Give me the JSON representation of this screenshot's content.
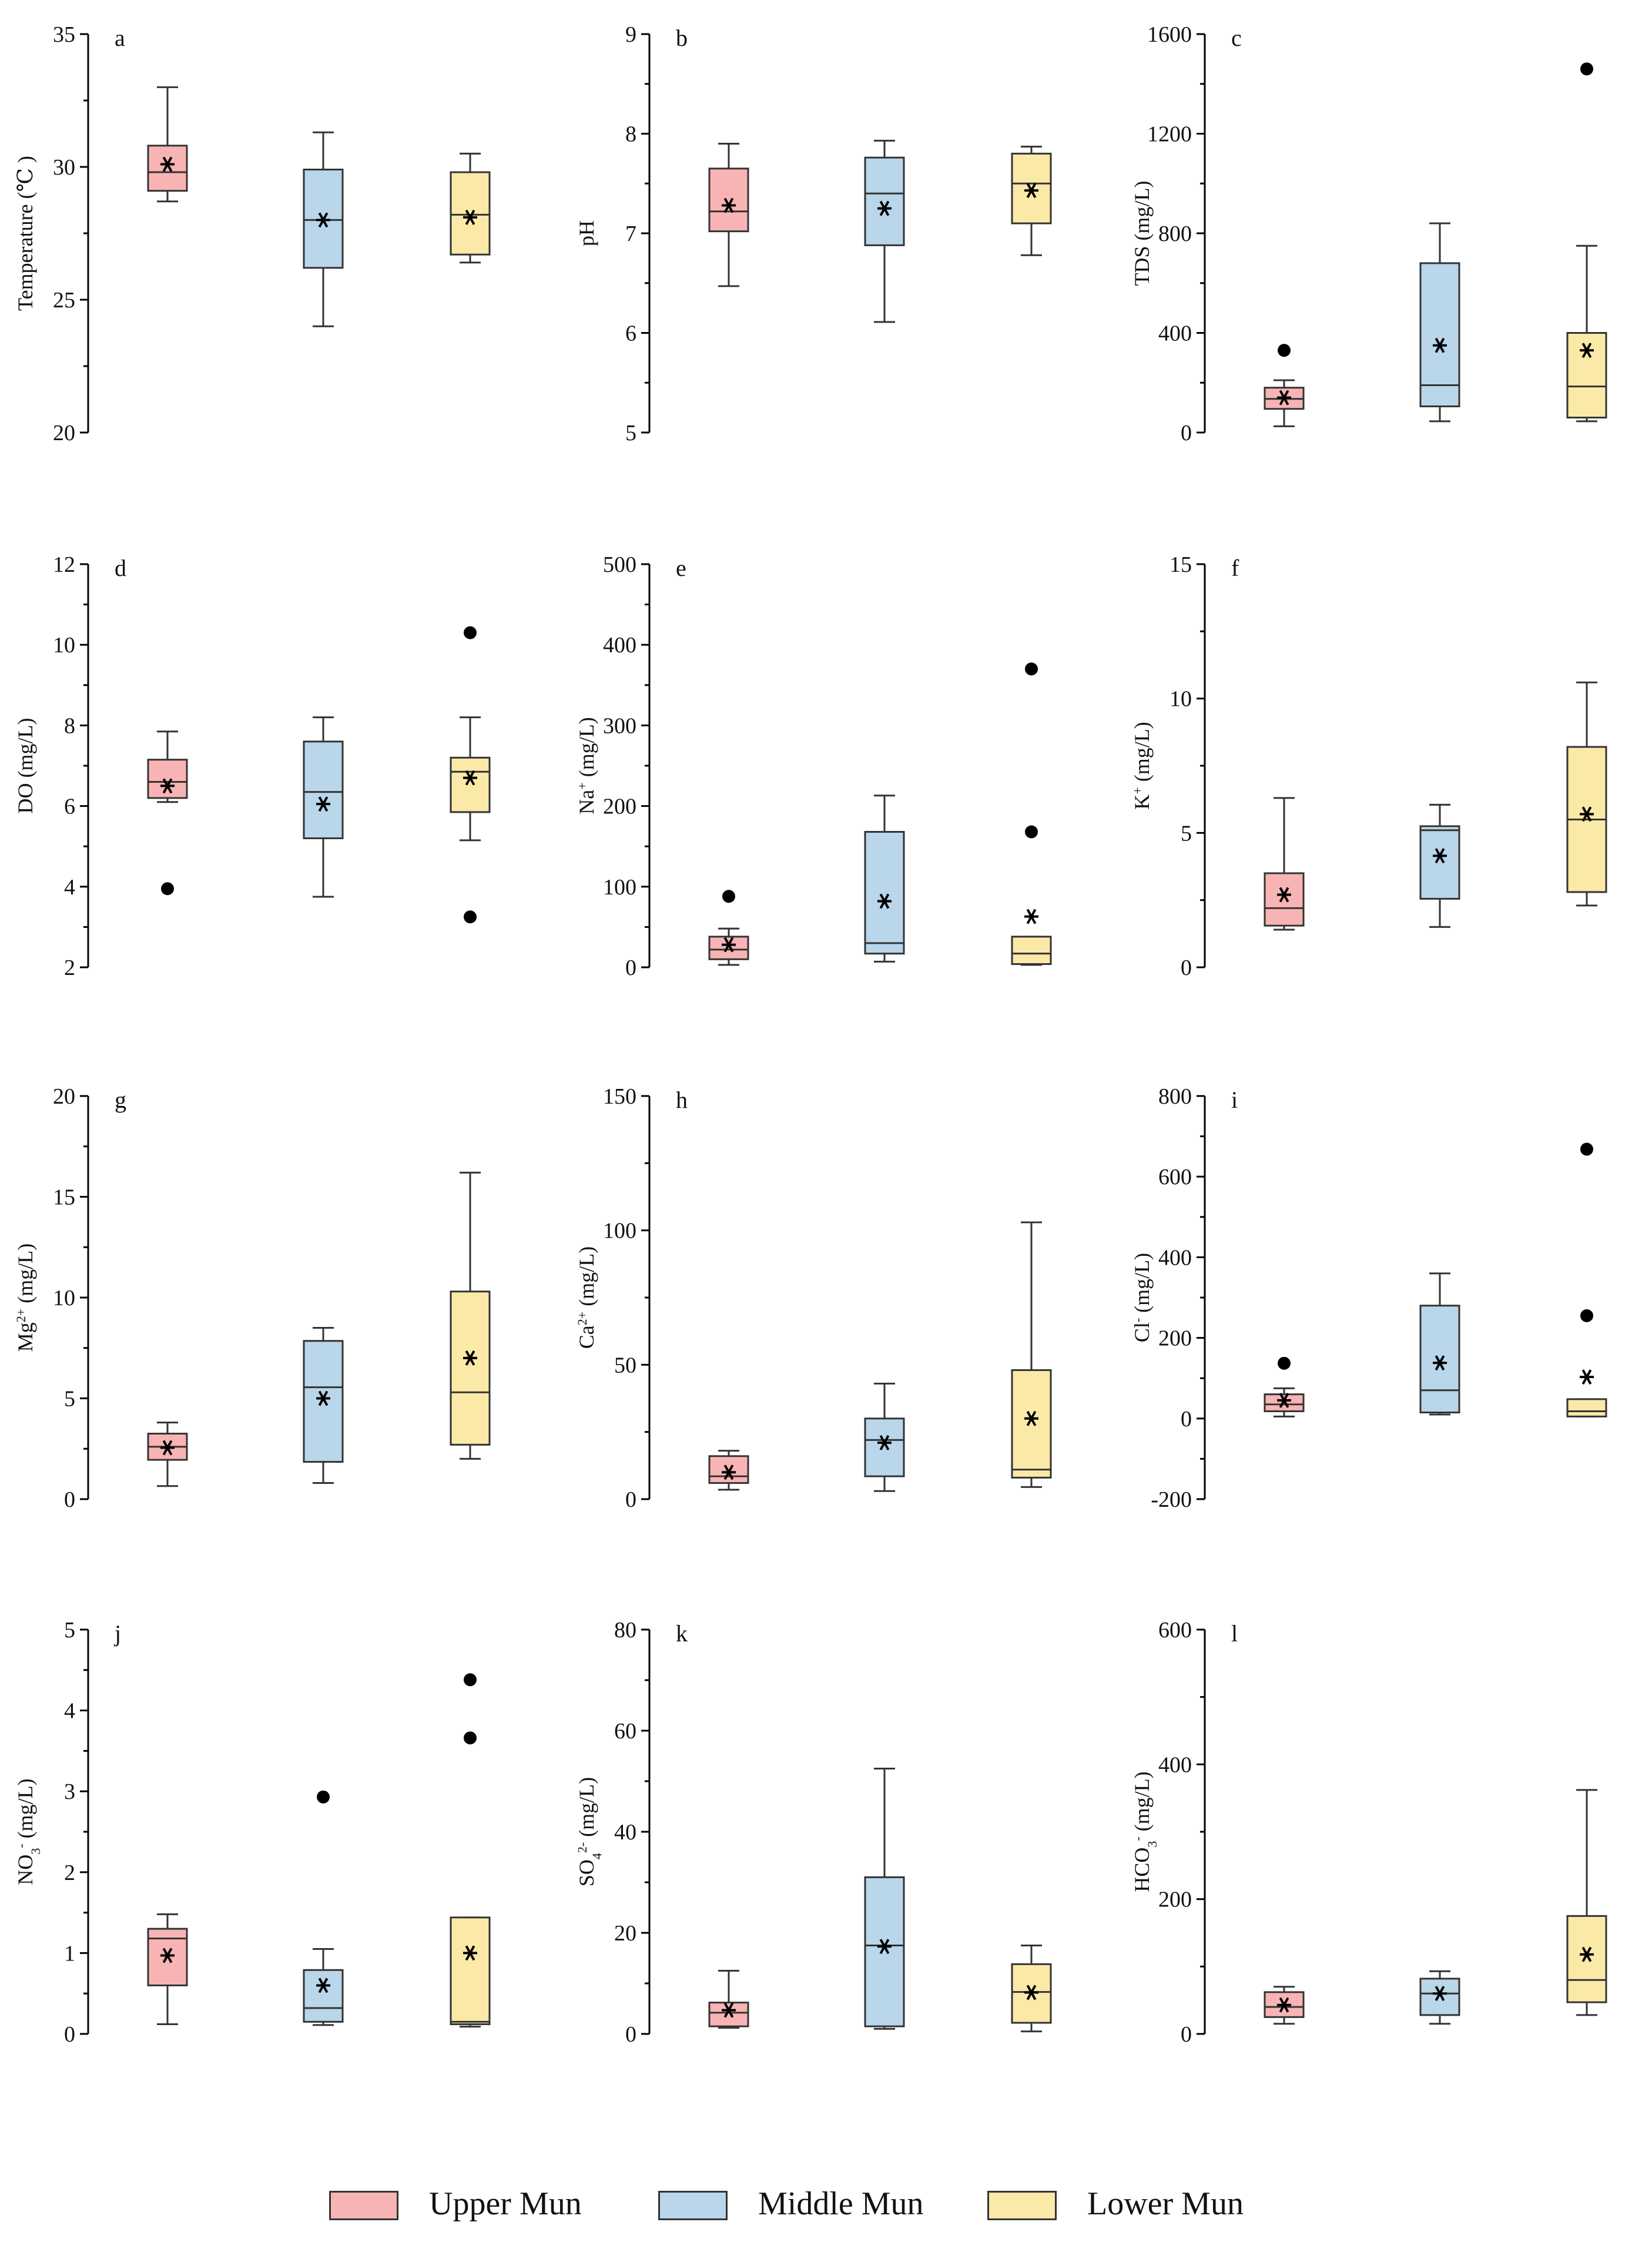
{
  "colors": {
    "Upper Mun": "#f8b4b4",
    "Middle Mun": "#b9d6ea",
    "Lower Mun": "#fbe9a8"
  },
  "legend": {
    "items": [
      {
        "label": "Upper Mun",
        "color": "#f8b4b4"
      },
      {
        "label": "Middle Mun",
        "color": "#b9d6ea"
      },
      {
        "label": "Lower Mun",
        "color": "#fbe9a8"
      }
    ]
  },
  "chart_data": [
    {
      "type": "box",
      "panel": "a",
      "ylabel": "Temperature (℃ )",
      "ylim": [
        20,
        35
      ],
      "ticks": [
        20,
        25,
        30,
        35
      ],
      "series": [
        {
          "name": "Upper Mun",
          "whisker_low": 28.7,
          "q1": 29.1,
          "median": 29.8,
          "q3": 30.8,
          "whisker_high": 33.0,
          "mean": 30.1,
          "outliers": []
        },
        {
          "name": "Middle Mun",
          "whisker_low": 24.0,
          "q1": 26.2,
          "median": 28.0,
          "q3": 29.9,
          "whisker_high": 31.3,
          "mean": 28.0,
          "outliers": []
        },
        {
          "name": "Lower Mun",
          "whisker_low": 26.4,
          "q1": 26.7,
          "median": 28.2,
          "q3": 29.8,
          "whisker_high": 30.5,
          "mean": 28.1,
          "outliers": []
        }
      ]
    },
    {
      "type": "box",
      "panel": "b",
      "ylabel": "pH",
      "ylim": [
        5,
        9
      ],
      "ticks": [
        5,
        6,
        7,
        8,
        9
      ],
      "series": [
        {
          "name": "Upper Mun",
          "whisker_low": 6.47,
          "q1": 7.02,
          "median": 7.22,
          "q3": 7.65,
          "whisker_high": 7.9,
          "mean": 7.28,
          "outliers": []
        },
        {
          "name": "Middle Mun",
          "whisker_low": 6.11,
          "q1": 6.88,
          "median": 7.4,
          "q3": 7.76,
          "whisker_high": 7.93,
          "mean": 7.25,
          "outliers": []
        },
        {
          "name": "Lower Mun",
          "whisker_low": 6.78,
          "q1": 7.1,
          "median": 7.5,
          "q3": 7.8,
          "whisker_high": 7.87,
          "mean": 7.43,
          "outliers": []
        }
      ]
    },
    {
      "type": "box",
      "panel": "c",
      "ylabel": "TDS (mg/L)",
      "ylim": [
        0,
        1600
      ],
      "ticks": [
        0,
        400,
        800,
        1200,
        1600
      ],
      "series": [
        {
          "name": "Upper Mun",
          "whisker_low": 25,
          "q1": 95,
          "median": 135,
          "q3": 180,
          "whisker_high": 210,
          "mean": 140,
          "outliers": [
            330
          ]
        },
        {
          "name": "Middle Mun",
          "whisker_low": 45,
          "q1": 105,
          "median": 190,
          "q3": 680,
          "whisker_high": 840,
          "mean": 350,
          "outliers": []
        },
        {
          "name": "Lower Mun",
          "whisker_low": 45,
          "q1": 60,
          "median": 185,
          "q3": 400,
          "whisker_high": 750,
          "mean": 330,
          "outliers": [
            1460
          ]
        }
      ]
    },
    {
      "type": "box",
      "panel": "d",
      "ylabel": "DO (mg/L)",
      "ylim": [
        2,
        12
      ],
      "ticks": [
        2,
        4,
        6,
        8,
        10,
        12
      ],
      "series": [
        {
          "name": "Upper Mun",
          "whisker_low": 6.1,
          "q1": 6.2,
          "median": 6.6,
          "q3": 7.15,
          "whisker_high": 7.85,
          "mean": 6.5,
          "outliers": [
            3.95
          ]
        },
        {
          "name": "Middle Mun",
          "whisker_low": 3.75,
          "q1": 5.2,
          "median": 6.35,
          "q3": 7.6,
          "whisker_high": 8.2,
          "mean": 6.05,
          "outliers": []
        },
        {
          "name": "Lower Mun",
          "whisker_low": 5.15,
          "q1": 5.85,
          "median": 6.85,
          "q3": 7.2,
          "whisker_high": 8.2,
          "mean": 6.7,
          "outliers": [
            10.3,
            3.25
          ]
        }
      ]
    },
    {
      "type": "box",
      "panel": "e",
      "ylabel": "Na+ (mg/L)",
      "ylim": [
        0,
        500
      ],
      "ticks": [
        0,
        100,
        200,
        300,
        400,
        500
      ],
      "series": [
        {
          "name": "Upper Mun",
          "whisker_low": 3,
          "q1": 10,
          "median": 22,
          "q3": 38,
          "whisker_high": 48,
          "mean": 28,
          "outliers": [
            88
          ]
        },
        {
          "name": "Middle Mun",
          "whisker_low": 7,
          "q1": 17,
          "median": 30,
          "q3": 168,
          "whisker_high": 213,
          "mean": 82,
          "outliers": []
        },
        {
          "name": "Lower Mun",
          "whisker_low": 3,
          "q1": 4,
          "median": 17,
          "q3": 38,
          "whisker_high": 38,
          "mean": 63,
          "outliers": [
            370,
            168
          ]
        }
      ]
    },
    {
      "type": "box",
      "panel": "f",
      "ylabel": "K+ (mg/L)",
      "ylim": [
        0,
        15
      ],
      "ticks": [
        0,
        5,
        10,
        15
      ],
      "series": [
        {
          "name": "Upper Mun",
          "whisker_low": 1.4,
          "q1": 1.55,
          "median": 2.2,
          "q3": 3.5,
          "whisker_high": 6.3,
          "mean": 2.7,
          "outliers": []
        },
        {
          "name": "Middle Mun",
          "whisker_low": 1.5,
          "q1": 2.55,
          "median": 5.1,
          "q3": 5.25,
          "whisker_high": 6.05,
          "mean": 4.15,
          "outliers": []
        },
        {
          "name": "Lower Mun",
          "whisker_low": 2.3,
          "q1": 2.8,
          "median": 5.5,
          "q3": 8.2,
          "whisker_high": 10.6,
          "mean": 5.7,
          "outliers": []
        }
      ]
    },
    {
      "type": "box",
      "panel": "g",
      "ylabel": "Mg2+ (mg/L)",
      "ylim": [
        0,
        20
      ],
      "ticks": [
        0,
        5,
        10,
        15,
        20
      ],
      "series": [
        {
          "name": "Upper Mun",
          "whisker_low": 0.65,
          "q1": 1.95,
          "median": 2.6,
          "q3": 3.25,
          "whisker_high": 3.8,
          "mean": 2.55,
          "outliers": []
        },
        {
          "name": "Middle Mun",
          "whisker_low": 0.8,
          "q1": 1.85,
          "median": 5.55,
          "q3": 7.85,
          "whisker_high": 8.5,
          "mean": 5.0,
          "outliers": []
        },
        {
          "name": "Lower Mun",
          "whisker_low": 2.0,
          "q1": 2.7,
          "median": 5.3,
          "q3": 10.3,
          "whisker_high": 16.2,
          "mean": 7.0,
          "outliers": []
        }
      ]
    },
    {
      "type": "box",
      "panel": "h",
      "ylabel": "Ca2+ (mg/L)",
      "ylim": [
        0,
        150
      ],
      "ticks": [
        0,
        50,
        100,
        150
      ],
      "series": [
        {
          "name": "Upper Mun",
          "whisker_low": 3.5,
          "q1": 6,
          "median": 8.5,
          "q3": 16,
          "whisker_high": 18,
          "mean": 10,
          "outliers": []
        },
        {
          "name": "Middle Mun",
          "whisker_low": 3,
          "q1": 8.5,
          "median": 22,
          "q3": 30,
          "whisker_high": 43,
          "mean": 21,
          "outliers": []
        },
        {
          "name": "Lower Mun",
          "whisker_low": 4.5,
          "q1": 8,
          "median": 11,
          "q3": 48,
          "whisker_high": 103,
          "mean": 30,
          "outliers": []
        }
      ]
    },
    {
      "type": "box",
      "panel": "i",
      "ylabel": "Cl- (mg/L)",
      "ylim": [
        -200,
        800
      ],
      "ticks": [
        -200,
        0,
        200,
        400,
        600,
        800
      ],
      "series": [
        {
          "name": "Upper Mun",
          "whisker_low": 5,
          "q1": 18,
          "median": 35,
          "q3": 60,
          "whisker_high": 75,
          "mean": 45,
          "outliers": [
            137
          ]
        },
        {
          "name": "Middle Mun",
          "whisker_low": 10,
          "q1": 15,
          "median": 70,
          "q3": 280,
          "whisker_high": 360,
          "mean": 138,
          "outliers": []
        },
        {
          "name": "Lower Mun",
          "whisker_low": 5,
          "q1": 5,
          "median": 18,
          "q3": 48,
          "whisker_high": 48,
          "mean": 103,
          "outliers": [
            668,
            255
          ]
        }
      ]
    },
    {
      "type": "box",
      "panel": "j",
      "ylabel": "NO3- (mg/L)",
      "ylim": [
        0,
        5
      ],
      "ticks": [
        0,
        1,
        2,
        3,
        4,
        5
      ],
      "series": [
        {
          "name": "Upper Mun",
          "whisker_low": 0.12,
          "q1": 0.6,
          "median": 1.18,
          "q3": 1.3,
          "whisker_high": 1.48,
          "mean": 0.97,
          "outliers": []
        },
        {
          "name": "Middle Mun",
          "whisker_low": 0.11,
          "q1": 0.15,
          "median": 0.32,
          "q3": 0.79,
          "whisker_high": 1.05,
          "mean": 0.6,
          "outliers": [
            2.93
          ]
        },
        {
          "name": "Lower Mun",
          "whisker_low": 0.09,
          "q1": 0.12,
          "median": 0.15,
          "q3": 1.44,
          "whisker_high": 1.44,
          "mean": 1.0,
          "outliers": [
            4.38,
            3.66
          ]
        }
      ]
    },
    {
      "type": "box",
      "panel": "k",
      "ylabel": "SO42- (mg/L)",
      "ylim": [
        0,
        80
      ],
      "ticks": [
        0,
        20,
        40,
        60,
        80
      ],
      "series": [
        {
          "name": "Upper Mun",
          "whisker_low": 1.2,
          "q1": 1.5,
          "median": 4.2,
          "q3": 6.2,
          "whisker_high": 12.5,
          "mean": 4.7,
          "outliers": []
        },
        {
          "name": "Middle Mun",
          "whisker_low": 1.0,
          "q1": 1.5,
          "median": 17.5,
          "q3": 31,
          "whisker_high": 52.5,
          "mean": 17.3,
          "outliers": []
        },
        {
          "name": "Lower Mun",
          "whisker_low": 0.5,
          "q1": 2.2,
          "median": 8.3,
          "q3": 13.8,
          "whisker_high": 17.5,
          "mean": 8.2,
          "outliers": []
        }
      ]
    },
    {
      "type": "box",
      "panel": "l",
      "ylabel": "HCO3- (mg/L)",
      "ylim": [
        0,
        600
      ],
      "ticks": [
        0,
        200,
        400,
        600
      ],
      "series": [
        {
          "name": "Upper Mun",
          "whisker_low": 15,
          "q1": 25,
          "median": 40,
          "q3": 62,
          "whisker_high": 70,
          "mean": 43,
          "outliers": []
        },
        {
          "name": "Middle Mun",
          "whisker_low": 15,
          "q1": 28,
          "median": 60,
          "q3": 82,
          "whisker_high": 93,
          "mean": 60,
          "outliers": []
        },
        {
          "name": "Lower Mun",
          "whisker_low": 28,
          "q1": 47,
          "median": 80,
          "q3": 175,
          "whisker_high": 362,
          "mean": 118,
          "outliers": []
        }
      ]
    }
  ]
}
